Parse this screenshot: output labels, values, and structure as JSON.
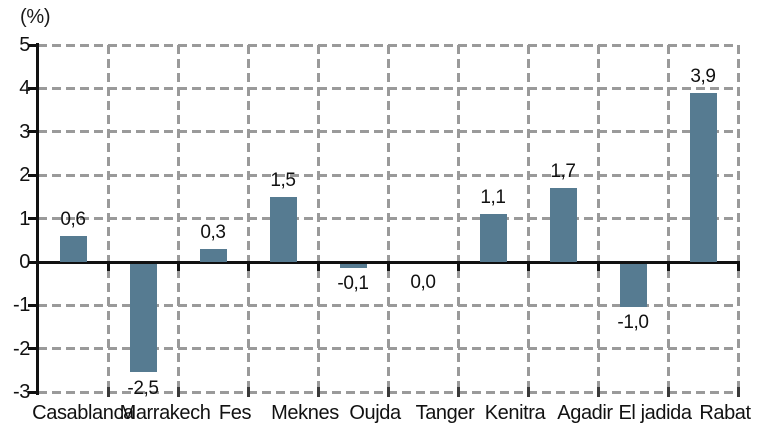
{
  "axis_label": "(%)",
  "chart_data": {
    "type": "bar",
    "title": "",
    "xlabel": "",
    "ylabel": "(%)",
    "categories": [
      "Casablanca",
      "Marrakech",
      "Fes",
      "Meknes",
      "Oujda",
      "Tanger",
      "Kenitra",
      "Agadir",
      "El jadida",
      "Rabat"
    ],
    "values": [
      0.6,
      -2.5,
      0.3,
      1.5,
      -0.1,
      0.0,
      1.1,
      1.7,
      -1.0,
      3.9
    ],
    "value_labels": [
      "0,6",
      "-2,5",
      "0,3",
      "1,5",
      "-0,1",
      "0,0",
      "1,1",
      "1,7",
      "-1,0",
      "3,9"
    ],
    "ylim": [
      -3,
      5
    ],
    "yticks": [
      5,
      4,
      3,
      2,
      1,
      0,
      -1,
      -2,
      -3
    ],
    "ytick_labels": [
      "5",
      "4",
      "3",
      "2",
      "1",
      "0",
      "-1",
      "-2",
      "-3"
    ],
    "grid": true,
    "legend": false,
    "bar_color": "#567b91",
    "grid_color": "#9a9a9a",
    "axis_color": "#111111",
    "text_color": "#111111"
  }
}
